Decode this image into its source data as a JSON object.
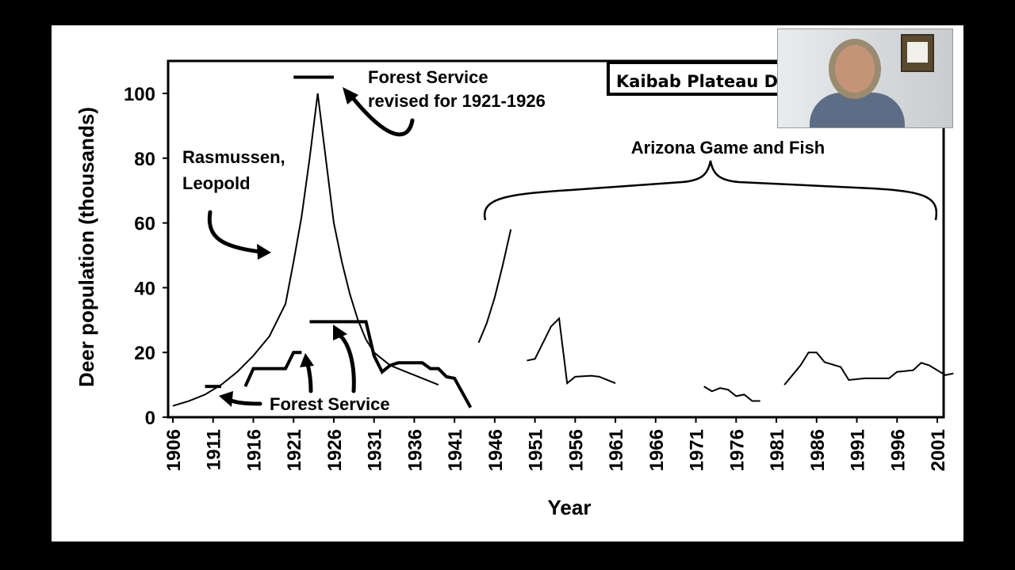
{
  "title": "Kaibab Plateau D",
  "chart_data": {
    "type": "line",
    "title": "Kaibab Plateau D",
    "xlabel": "Year",
    "ylabel": "Deer population (thousands)",
    "xlim": [
      1905,
      2003
    ],
    "ylim": [
      0,
      110
    ],
    "xticks": [
      1906,
      1911,
      1916,
      1921,
      1926,
      1931,
      1936,
      1941,
      1946,
      1951,
      1956,
      1961,
      1966,
      1971,
      1976,
      1981,
      1986,
      1991,
      1996,
      2001
    ],
    "yticks": [
      0,
      20,
      40,
      60,
      80,
      100
    ],
    "grid": false,
    "series": [
      {
        "name": "Rasmussen, Leopold",
        "style": "thin",
        "x": [
          1906,
          1908,
          1910,
          1912,
          1914,
          1916,
          1918,
          1920,
          1921,
          1922,
          1923,
          1924,
          1925,
          1926,
          1927,
          1928,
          1929,
          1930,
          1931,
          1933,
          1936,
          1939
        ],
        "y": [
          3.5,
          5,
          7,
          10,
          14,
          19,
          25,
          35,
          48,
          62,
          80,
          100,
          80,
          60,
          48,
          38,
          30,
          24,
          20,
          16,
          13,
          10
        ]
      },
      {
        "name": "Forest Service (1910-1912)",
        "style": "thick",
        "x": [
          1910,
          1912
        ],
        "y": [
          9.5,
          9.5
        ]
      },
      {
        "name": "Forest Service (1916-1922)",
        "style": "thick",
        "x": [
          1915,
          1916,
          1919,
          1920,
          1921,
          1922
        ],
        "y": [
          9.5,
          15,
          15,
          15,
          20,
          20
        ]
      },
      {
        "name": "Forest Service (1923-1943)",
        "style": "thick",
        "x": [
          1923,
          1930,
          1931,
          1932,
          1933,
          1934,
          1937,
          1938,
          1939,
          1940,
          1941,
          1943
        ],
        "y": [
          29.5,
          29.5,
          19,
          14,
          16,
          16.8,
          16.8,
          15,
          15,
          12.5,
          12,
          3
        ]
      },
      {
        "name": "Forest Service revised for 1921-1926",
        "style": "thick",
        "x": [
          1921,
          1926
        ],
        "y": [
          105,
          105
        ]
      },
      {
        "name": "Arizona Game and Fish 1944-1948",
        "style": "thin",
        "x": [
          1944,
          1945,
          1946,
          1947,
          1948
        ],
        "y": [
          23,
          29,
          37,
          47,
          58
        ]
      },
      {
        "name": "Arizona Game and Fish 1950-1961",
        "style": "thin",
        "x": [
          1950,
          1951,
          1953,
          1954,
          1955,
          1956,
          1958,
          1959,
          1961
        ],
        "y": [
          17.5,
          18,
          28,
          30.5,
          10.5,
          12.5,
          12.8,
          12.5,
          10.5
        ]
      },
      {
        "name": "Arizona Game and Fish 1972-1979",
        "style": "thin",
        "x": [
          1972,
          1973,
          1974,
          1975,
          1976,
          1977,
          1978,
          1979
        ],
        "y": [
          9.5,
          8,
          9,
          8.5,
          6.5,
          7,
          5,
          5
        ]
      },
      {
        "name": "Arizona Game and Fish 1982-2003",
        "style": "thin",
        "x": [
          1982,
          1984,
          1985,
          1986,
          1987,
          1989,
          1990,
          1992,
          1995,
          1996,
          1998,
          1999,
          2000,
          2002,
          2003
        ],
        "y": [
          10,
          16,
          20,
          20,
          17,
          15.5,
          11.5,
          12,
          12,
          14,
          14.5,
          16.8,
          16,
          13,
          13.5
        ]
      }
    ],
    "annotations": [
      "Rasmussen, Leopold",
      "Forest Service",
      "Forest Service revised for 1921-1926",
      "Arizona Game and Fish"
    ]
  }
}
